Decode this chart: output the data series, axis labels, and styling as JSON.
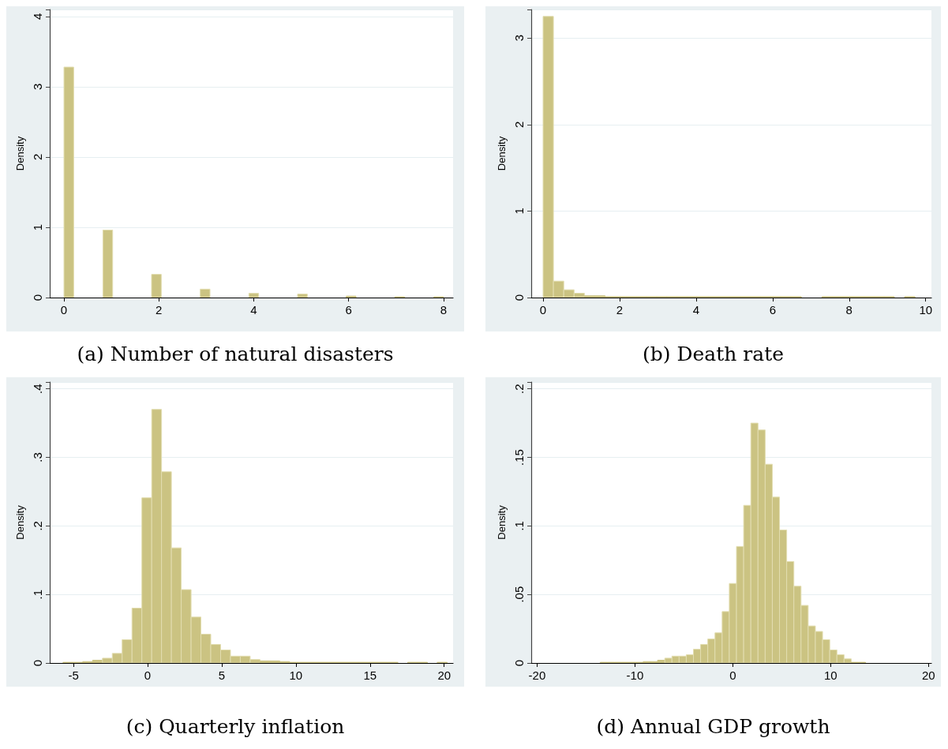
{
  "chart_data": [
    {
      "type": "histogram",
      "title": "(a) Number of natural disasters",
      "ylabel": "Density",
      "color": "#cbc382",
      "grid": "y",
      "bins": [
        0,
        0.205,
        0.41,
        0.615,
        0.821,
        1.026,
        1.231,
        1.436,
        1.641,
        1.846,
        2.051,
        2.256,
        2.462,
        2.667,
        2.872,
        3.077,
        3.282,
        3.487,
        3.692,
        3.897,
        4.103,
        4.308,
        4.513,
        4.718,
        4.923,
        5.128,
        5.333,
        5.538,
        5.744,
        5.949,
        6.154,
        6.359,
        6.564,
        6.769,
        6.974,
        7.179,
        7.385,
        7.59,
        7.795,
        8
      ],
      "values": [
        3.28,
        0,
        0,
        0,
        0.96,
        0,
        0,
        0,
        0,
        0.33,
        0,
        0,
        0,
        0,
        0.12,
        0,
        0,
        0,
        0,
        0.06,
        0,
        0,
        0,
        0,
        0.05,
        0,
        0,
        0,
        0,
        0.02,
        0,
        0,
        0,
        0,
        0.01,
        0,
        0,
        0,
        0.01
      ],
      "xlim": [
        -0.3,
        8.2
      ],
      "xticks": [
        0,
        2,
        4,
        6,
        8
      ],
      "ylim": [
        0,
        4.1
      ],
      "yticks": [
        0,
        1,
        2,
        3,
        4
      ]
    },
    {
      "type": "histogram",
      "title": "(b) Death rate",
      "ylabel": "Density",
      "color": "#cbc382",
      "grid": "y",
      "bins": [
        0,
        0.27,
        0.54,
        0.81,
        1.08,
        1.35,
        1.62,
        1.89,
        2.16,
        2.43,
        2.7,
        2.97,
        3.24,
        3.51,
        3.78,
        4.05,
        4.32,
        4.59,
        4.86,
        5.13,
        5.4,
        5.67,
        5.94,
        6.21,
        6.48,
        6.75,
        7.02,
        7.29,
        7.56,
        7.83,
        8.1,
        8.37,
        8.64,
        8.91,
        9.18,
        9.45,
        9.72
      ],
      "values": [
        3.25,
        0.19,
        0.09,
        0.05,
        0.02,
        0.02,
        0.01,
        0.01,
        0.01,
        0.01,
        0.01,
        0.01,
        0.01,
        0.01,
        0.01,
        0.01,
        0.01,
        0.01,
        0.01,
        0.01,
        0.01,
        0.01,
        0.01,
        0.01,
        0.01,
        0,
        0,
        0.01,
        0.01,
        0.01,
        0.01,
        0.01,
        0.01,
        0.01,
        0,
        0.01
      ],
      "xlim": [
        -0.31,
        10.15
      ],
      "xticks": [
        0,
        2,
        4,
        6,
        8,
        10
      ],
      "ylim": [
        0,
        3.33
      ],
      "yticks": [
        0,
        1,
        2,
        3
      ]
    },
    {
      "type": "histogram",
      "title": "(c) Quarterly inflation",
      "ylabel": "Density",
      "color": "#cbc382",
      "grid": "y",
      "bins": [
        -5.7,
        -5.036,
        -4.372,
        -3.708,
        -3.044,
        -2.38,
        -1.716,
        -1.052,
        -0.388,
        0.276,
        0.94,
        1.604,
        2.268,
        2.932,
        3.596,
        4.26,
        4.924,
        5.588,
        6.252,
        6.916,
        7.58,
        8.244,
        8.908,
        9.572,
        10.236,
        10.9,
        11.564,
        12.228,
        12.892,
        13.556,
        14.22,
        14.884,
        15.548,
        16.212,
        16.876,
        17.54,
        18.204,
        18.868,
        19.532,
        20.196
      ],
      "values": [
        0.001,
        0.001,
        0.002,
        0.004,
        0.007,
        0.014,
        0.034,
        0.08,
        0.241,
        0.37,
        0.279,
        0.168,
        0.107,
        0.067,
        0.042,
        0.027,
        0.019,
        0.01,
        0.01,
        0.005,
        0.003,
        0.003,
        0.002,
        0.001,
        0.001,
        0.001,
        0.001,
        0.001,
        0.001,
        0.001,
        0.001,
        0.001,
        0.001,
        0.001,
        0,
        0.001,
        0.001,
        0,
        0.001
      ],
      "xlim": [
        -6.6,
        20.6
      ],
      "xticks": [
        -5,
        0,
        5,
        10,
        15,
        20
      ],
      "ylim": [
        0,
        0.41
      ],
      "yticks": [
        0,
        {
          "value": 0.1,
          "label": ".1"
        },
        {
          "value": 0.2,
          "label": ".2"
        },
        {
          "value": 0.3,
          "label": ".3"
        },
        {
          "value": 0.4,
          "label": ".4"
        }
      ]
    },
    {
      "type": "histogram",
      "title": "(d) Annual GDP growth",
      "ylabel": "Density",
      "color": "#cbc382",
      "grid": "y",
      "bins": [
        -13.55,
        -12.817,
        -12.084,
        -11.351,
        -10.618,
        -9.885,
        -9.152,
        -8.419,
        -7.686,
        -6.953,
        -6.22,
        -5.487,
        -4.754,
        -4.021,
        -3.288,
        -2.555,
        -1.822,
        -1.089,
        -0.356,
        0.377,
        1.11,
        1.843,
        2.576,
        3.309,
        4.042,
        4.775,
        5.508,
        6.241,
        6.974,
        7.707,
        8.44,
        9.173,
        9.906,
        10.639,
        11.372,
        12.105,
        12.838,
        13.571
      ],
      "values": [
        0.0005,
        0.0005,
        0.0005,
        0.0005,
        0.0005,
        0.0005,
        0.001,
        0.001,
        0.002,
        0.0035,
        0.005,
        0.005,
        0.006,
        0.01,
        0.0135,
        0.0175,
        0.022,
        0.0375,
        0.058,
        0.085,
        0.115,
        0.175,
        0.17,
        0.145,
        0.121,
        0.097,
        0.074,
        0.056,
        0.042,
        0.027,
        0.023,
        0.017,
        0.0095,
        0.006,
        0.003,
        0.0005,
        0.0005
      ],
      "xlim": [
        -20.6,
        20.3
      ],
      "xticks": [
        -20,
        -10,
        0,
        10,
        20
      ],
      "ylim": [
        0,
        0.205
      ],
      "yticks": [
        0,
        {
          "value": 0.05,
          "label": ".05"
        },
        {
          "value": 0.1,
          "label": ".1"
        },
        {
          "value": 0.15,
          "label": ".15"
        },
        {
          "value": 0.2,
          "label": ".2"
        }
      ]
    }
  ]
}
